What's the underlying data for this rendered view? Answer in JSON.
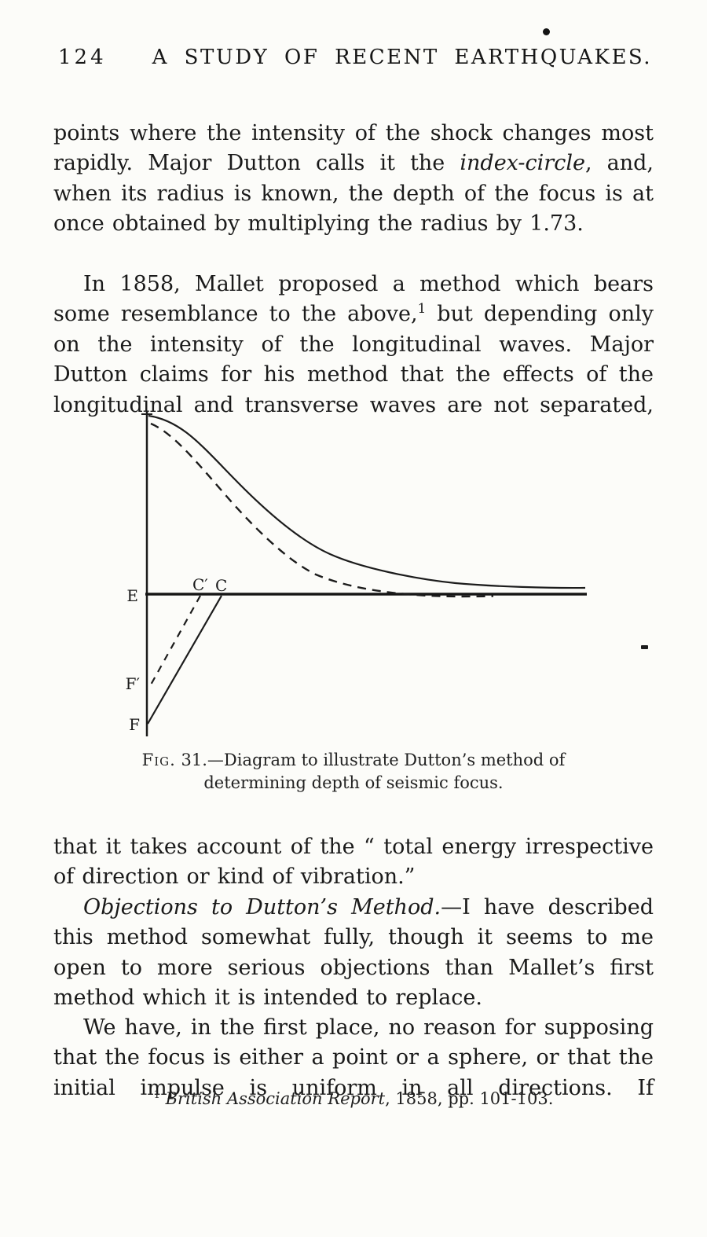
{
  "page": {
    "number": "124",
    "header_title": "A STUDY OF RECENT EARTHQUAKES."
  },
  "paragraphs": {
    "p1": {
      "segments": [
        {
          "text": "points where the intensity of the shock changes most rapidly.  Major Dutton calls it the "
        },
        {
          "text": "index-circle",
          "italic": true
        },
        {
          "text": ", and, when its radius is known, the depth of the focus is at once obtained by multiplying the radius by 1.73."
        }
      ]
    },
    "p2": {
      "segments": [
        {
          "text": "In 1858, Mallet proposed a method which bears some resemblance to the above,"
        },
        {
          "text": "1",
          "sup": true
        },
        {
          "text": " but depending only on the intensity of the longitudinal waves.  Major Dutton claims for his method that the effects of the longitudinal and transverse waves are not separated,"
        }
      ]
    },
    "p3": {
      "segments": [
        {
          "text": "that it takes account of the “ total energy irrespective of direction or kind of vibration.”"
        }
      ]
    },
    "p4": {
      "segments": [
        {
          "text": "Objections to Dutton’s Method.",
          "italic": true
        },
        {
          "text": "—I have described this method somewhat fully, though it seems to me open to more serious objections than Mallet’s first method which it is intended to replace."
        }
      ]
    },
    "p5": {
      "segments": [
        {
          "text": "We have, in the first place, no reason for supposing that the focus is either a point or a sphere, or that the initial impulse is uniform in all directions.  If"
        }
      ]
    }
  },
  "figure": {
    "labels": {
      "E": "E",
      "C_prime": "C′",
      "C": "C",
      "F_prime": "F′",
      "F": "F"
    },
    "caption": {
      "line1_prefix": "Fig.",
      "line1_rest": " 31.—Diagram to illustrate Dutton’s method of",
      "line2": "determining depth of seismic focus."
    }
  },
  "footnote": {
    "segments": [
      {
        "text": "1",
        "sup": true
      },
      {
        "text": " "
      },
      {
        "text": "British Association Report",
        "italic": true
      },
      {
        "text": ", 1858, pp. 101-103."
      }
    ]
  }
}
